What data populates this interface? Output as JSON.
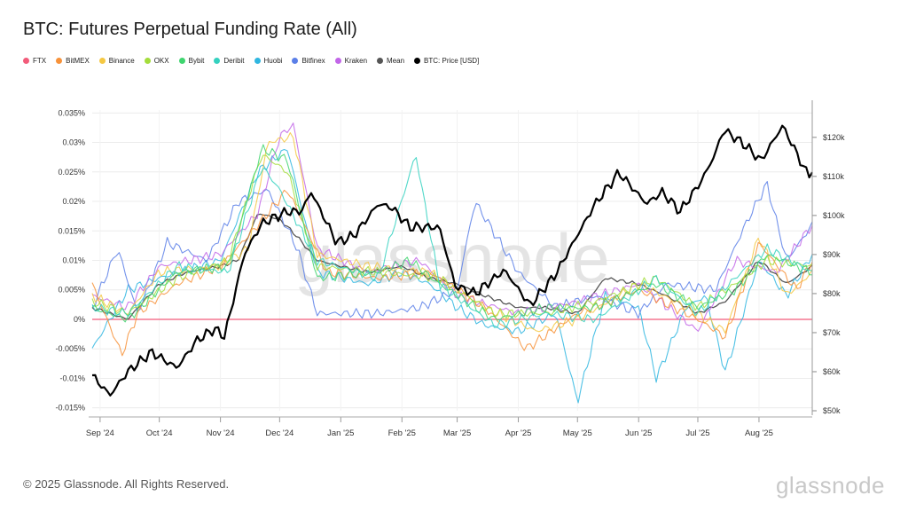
{
  "title": "BTC: Futures Perpetual Funding Rate (All)",
  "legend": [
    {
      "label": "FTX",
      "color": "#f25b7a"
    },
    {
      "label": "BitMEX",
      "color": "#f7923a"
    },
    {
      "label": "Binance",
      "color": "#f5c842"
    },
    {
      "label": "OKX",
      "color": "#a4dd3c"
    },
    {
      "label": "Bybit",
      "color": "#3fd56f"
    },
    {
      "label": "Deribit",
      "color": "#34d1bf"
    },
    {
      "label": "Huobi",
      "color": "#2fb6e0"
    },
    {
      "label": "Bitfinex",
      "color": "#5b7fe8"
    },
    {
      "label": "Kraken",
      "color": "#c266e8"
    },
    {
      "label": "Mean",
      "color": "#555555"
    },
    {
      "label": "BTC: Price [USD]",
      "color": "#000000"
    }
  ],
  "footer": "© 2025 Glassnode. All Rights Reserved.",
  "brand": "glassnode",
  "chart_data": {
    "type": "line",
    "y_left_ticks": [
      "0.035%",
      "0.03%",
      "0.025%",
      "0.02%",
      "0.015%",
      "0.01%",
      "0.005%",
      "0%",
      "-0.005%",
      "-0.01%",
      "-0.015%"
    ],
    "y_left_range": [
      -0.0155,
      0.0355
    ],
    "y_right_ticks": [
      "$120k",
      "$110k",
      "$100k",
      "$90k",
      "$80k",
      "$70k",
      "$60k",
      "$50k"
    ],
    "y_right_range": [
      50000,
      127000
    ],
    "x_ticks": [
      "Sep '24",
      "Oct '24",
      "Nov '24",
      "Dec '24",
      "Jan '25",
      "Feb '25",
      "Mar '25",
      "Apr '25",
      "May '25",
      "Jun '25",
      "Jul '25",
      "Aug '25"
    ],
    "x_range": [
      "2024-08-28",
      "2025-08-28"
    ],
    "grid": true,
    "series": [
      {
        "name": "FTX",
        "axis": "left",
        "color": "#f25b7a",
        "x": [
          "2024-08-28",
          "2025-08-28"
        ],
        "y": [
          0,
          0
        ]
      },
      {
        "name": "Mean",
        "axis": "left",
        "color": "#555555",
        "x": [
          "2024-08-28",
          "2024-09-15",
          "2024-10-01",
          "2024-10-15",
          "2024-11-01",
          "2024-11-10",
          "2024-11-20",
          "2024-12-01",
          "2024-12-10",
          "2024-12-20",
          "2025-01-01",
          "2025-01-15",
          "2025-02-01",
          "2025-02-15",
          "2025-03-01",
          "2025-03-15",
          "2025-04-01",
          "2025-04-15",
          "2025-05-01",
          "2025-05-15",
          "2025-06-01",
          "2025-06-15",
          "2025-07-01",
          "2025-07-15",
          "2025-08-01",
          "2025-08-15",
          "2025-08-28"
        ],
        "y": [
          0.002,
          0.0,
          0.006,
          0.008,
          0.009,
          0.01,
          0.018,
          0.017,
          0.014,
          0.01,
          0.009,
          0.008,
          0.009,
          0.007,
          0.006,
          0.004,
          0.002,
          0.002,
          0.001,
          0.007,
          0.006,
          0.004,
          0.001,
          0.003,
          0.01,
          0.006,
          0.009
        ]
      },
      {
        "name": "Huobi",
        "axis": "left",
        "color": "#2fb6e0",
        "x": [
          "2024-08-28",
          "2024-09-15",
          "2024-10-01",
          "2024-11-01",
          "2024-11-20",
          "2024-12-05",
          "2024-12-20",
          "2025-01-15",
          "2025-02-01",
          "2025-02-15",
          "2025-03-01",
          "2025-03-15",
          "2025-04-01",
          "2025-04-20",
          "2025-05-01",
          "2025-05-15",
          "2025-06-01",
          "2025-06-10",
          "2025-06-25",
          "2025-07-05",
          "2025-07-15",
          "2025-08-01",
          "2025-08-15",
          "2025-08-28"
        ],
        "y": [
          -0.005,
          0.005,
          0.007,
          0.01,
          0.025,
          0.029,
          0.008,
          0.006,
          0.008,
          0.006,
          0.002,
          -0.001,
          -0.002,
          0.001,
          -0.014,
          0.004,
          0.002,
          -0.01,
          0.002,
          0.004,
          -0.009,
          0.01,
          0.004,
          0.011
        ]
      },
      {
        "name": "Bitfinex",
        "axis": "left",
        "color": "#5b7fe8",
        "x": [
          "2024-08-28",
          "2024-09-10",
          "2024-09-20",
          "2024-10-05",
          "2024-10-25",
          "2024-11-10",
          "2024-11-25",
          "2024-12-10",
          "2024-12-20",
          "2025-01-05",
          "2025-01-20",
          "2025-02-10",
          "2025-03-01",
          "2025-03-10",
          "2025-04-01",
          "2025-04-20",
          "2025-05-10",
          "2025-06-01",
          "2025-06-15",
          "2025-07-10",
          "2025-07-25",
          "2025-08-05",
          "2025-08-15",
          "2025-08-28"
        ],
        "y": [
          0.002,
          0.012,
          0.001,
          0.013,
          0.01,
          0.02,
          0.022,
          0.012,
          0.001,
          0.001,
          0.001,
          0.002,
          0.005,
          0.02,
          0.008,
          0.002,
          0.004,
          0.001,
          0.006,
          0.005,
          0.016,
          0.023,
          0.01,
          0.016
        ]
      },
      {
        "name": "Kraken",
        "axis": "left",
        "color": "#c266e8",
        "x": [
          "2024-08-28",
          "2024-09-15",
          "2024-10-01",
          "2024-11-01",
          "2024-11-20",
          "2024-12-01",
          "2024-12-08",
          "2024-12-20",
          "2025-01-15",
          "2025-02-10",
          "2025-03-01",
          "2025-04-01",
          "2025-05-01",
          "2025-06-01",
          "2025-07-01",
          "2025-07-20",
          "2025-08-10",
          "2025-08-28"
        ],
        "y": [
          0.004,
          0.002,
          0.009,
          0.011,
          0.018,
          0.031,
          0.033,
          0.012,
          0.008,
          0.01,
          0.004,
          0.001,
          0.003,
          0.006,
          -0.002,
          0.01,
          0.008,
          0.016
        ]
      },
      {
        "name": "Binance",
        "axis": "left",
        "color": "#f5c842",
        "x": [
          "2024-08-28",
          "2024-09-15",
          "2024-10-01",
          "2024-11-01",
          "2024-11-15",
          "2024-11-25",
          "2024-12-08",
          "2024-12-20",
          "2025-01-15",
          "2025-02-15",
          "2025-03-15",
          "2025-04-10",
          "2025-05-01",
          "2025-06-01",
          "2025-06-20",
          "2025-07-15",
          "2025-08-01",
          "2025-08-15",
          "2025-08-28"
        ],
        "y": [
          0.004,
          0.001,
          0.008,
          0.009,
          0.012,
          0.03,
          0.031,
          0.011,
          0.009,
          0.008,
          0.002,
          -0.002,
          0.0,
          0.006,
          0.003,
          -0.002,
          0.014,
          0.004,
          0.008
        ]
      },
      {
        "name": "BitMEX",
        "axis": "left",
        "color": "#f7923a",
        "x": [
          "2024-08-28",
          "2024-09-12",
          "2024-09-20",
          "2024-10-10",
          "2024-11-01",
          "2024-11-20",
          "2024-12-05",
          "2024-12-25",
          "2025-01-20",
          "2025-02-15",
          "2025-03-15",
          "2025-04-05",
          "2025-05-01",
          "2025-06-01",
          "2025-07-01",
          "2025-07-15",
          "2025-08-01",
          "2025-08-20",
          "2025-08-28"
        ],
        "y": [
          0.006,
          -0.006,
          0.001,
          0.006,
          0.009,
          0.016,
          0.022,
          0.008,
          0.007,
          0.008,
          0.002,
          -0.005,
          0.001,
          0.005,
          0.0,
          -0.003,
          0.013,
          0.005,
          0.01
        ]
      },
      {
        "name": "OKX",
        "axis": "left",
        "color": "#a4dd3c",
        "x": [
          "2024-08-28",
          "2024-09-15",
          "2024-10-10",
          "2024-11-05",
          "2024-11-22",
          "2024-12-05",
          "2024-12-20",
          "2025-01-20",
          "2025-02-20",
          "2025-03-20",
          "2025-04-15",
          "2025-05-10",
          "2025-06-10",
          "2025-07-01",
          "2025-07-20",
          "2025-08-05",
          "2025-08-28"
        ],
        "y": [
          0.003,
          0.001,
          0.007,
          0.01,
          0.028,
          0.025,
          0.009,
          0.008,
          0.007,
          0.001,
          0.001,
          0.003,
          0.007,
          0.002,
          0.006,
          0.01,
          0.009
        ]
      },
      {
        "name": "Bybit",
        "axis": "left",
        "color": "#3fd56f",
        "x": [
          "2024-08-28",
          "2024-09-15",
          "2024-10-10",
          "2024-11-05",
          "2024-11-22",
          "2024-12-05",
          "2024-12-20",
          "2025-01-20",
          "2025-02-05",
          "2025-02-20",
          "2025-03-20",
          "2025-04-15",
          "2025-05-10",
          "2025-06-10",
          "2025-07-01",
          "2025-07-20",
          "2025-08-05",
          "2025-08-28"
        ],
        "y": [
          0.002,
          0.0,
          0.008,
          0.009,
          0.029,
          0.027,
          0.007,
          0.008,
          0.01,
          0.006,
          0.0,
          0.002,
          0.002,
          0.006,
          0.002,
          0.005,
          0.011,
          0.008
        ]
      },
      {
        "name": "Deribit",
        "axis": "left",
        "color": "#34d1bf",
        "x": [
          "2024-08-28",
          "2024-09-15",
          "2024-10-10",
          "2024-11-05",
          "2024-11-22",
          "2024-12-01",
          "2024-12-20",
          "2025-01-20",
          "2025-02-08",
          "2025-02-20",
          "2025-03-20",
          "2025-04-15",
          "2025-05-10",
          "2025-06-10",
          "2025-07-01",
          "2025-07-20",
          "2025-08-05",
          "2025-08-28"
        ],
        "y": [
          0.002,
          0.001,
          0.009,
          0.008,
          0.026,
          0.022,
          0.01,
          0.007,
          0.028,
          0.006,
          -0.001,
          0.001,
          0.0,
          0.007,
          0.001,
          0.007,
          0.012,
          0.008
        ]
      },
      {
        "name": "BTC: Price [USD]",
        "axis": "right",
        "color": "#000000",
        "x": [
          "2024-08-28",
          "2024-09-06",
          "2024-09-15",
          "2024-09-27",
          "2024-10-10",
          "2024-10-20",
          "2024-10-29",
          "2024-11-03",
          "2024-11-06",
          "2024-11-13",
          "2024-11-22",
          "2024-12-05",
          "2024-12-12",
          "2024-12-17",
          "2024-12-30",
          "2025-01-08",
          "2025-01-20",
          "2025-01-27",
          "2025-02-05",
          "2025-02-20",
          "2025-02-28",
          "2025-03-10",
          "2025-03-25",
          "2025-04-07",
          "2025-04-20",
          "2025-05-01",
          "2025-05-10",
          "2025-05-22",
          "2025-06-05",
          "2025-06-13",
          "2025-06-22",
          "2025-07-03",
          "2025-07-10",
          "2025-07-14",
          "2025-07-25",
          "2025-08-02",
          "2025-08-13",
          "2025-08-22",
          "2025-08-26",
          "2025-08-28"
        ],
        "y": [
          59000,
          54000,
          60000,
          65000,
          61000,
          68000,
          71000,
          69000,
          75000,
          90000,
          98000,
          101000,
          101000,
          106000,
          93000,
          95000,
          103000,
          102000,
          97000,
          97000,
          82000,
          80000,
          86000,
          77000,
          85000,
          95000,
          103000,
          111000,
          103000,
          106000,
          101000,
          109000,
          116000,
          122000,
          118000,
          114000,
          123000,
          114000,
          110000,
          112000
        ]
      }
    ]
  }
}
